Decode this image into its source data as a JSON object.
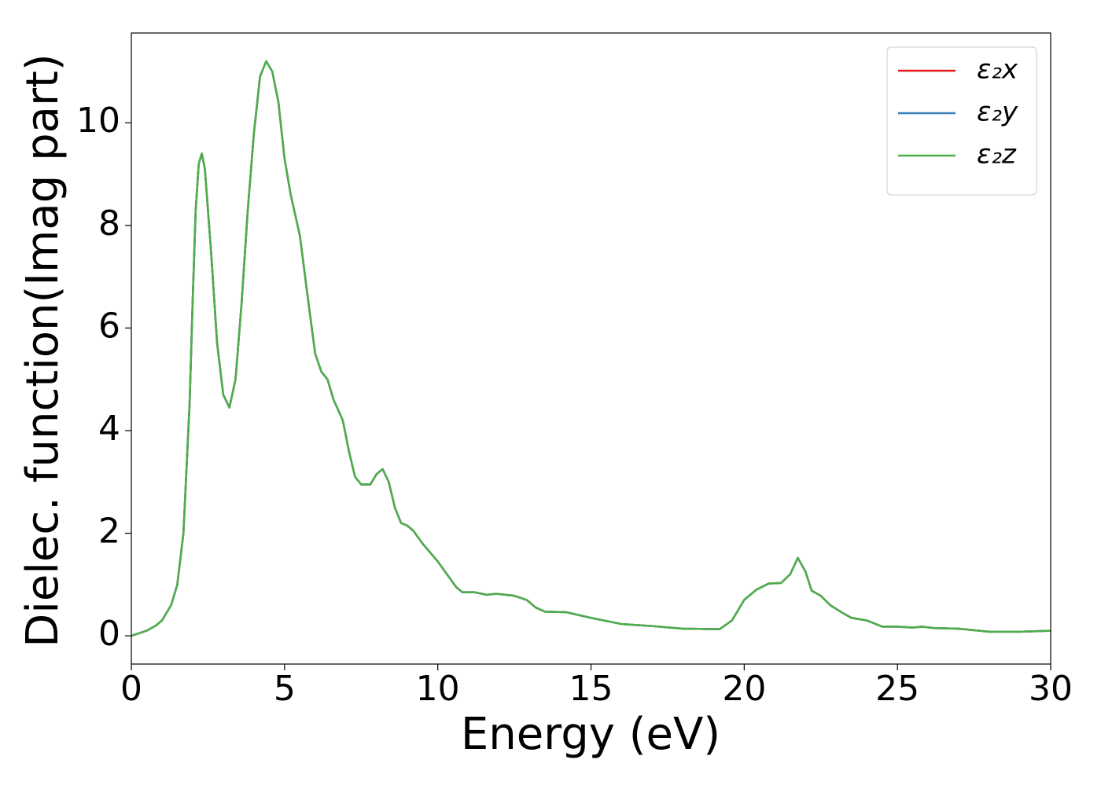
{
  "chart_data": {
    "type": "line",
    "x_label": "Energy (eV)",
    "y_label": "Dielec. function(Imag part)",
    "xlim": [
      0,
      30
    ],
    "ylim": [
      -0.55,
      11.75
    ],
    "xticks": [
      0,
      5,
      10,
      15,
      20,
      25,
      30
    ],
    "yticks": [
      0,
      2,
      4,
      6,
      8,
      10
    ],
    "legend": "upper right",
    "x": [
      0,
      0.5,
      0.8,
      1.0,
      1.3,
      1.5,
      1.7,
      1.9,
      2.0,
      2.1,
      2.2,
      2.3,
      2.4,
      2.6,
      2.8,
      3.0,
      3.2,
      3.4,
      3.6,
      3.8,
      4.0,
      4.2,
      4.4,
      4.6,
      4.8,
      5.0,
      5.2,
      5.5,
      5.8,
      6.0,
      6.2,
      6.4,
      6.6,
      6.9,
      7.1,
      7.3,
      7.5,
      7.8,
      8.0,
      8.2,
      8.4,
      8.6,
      8.8,
      9.0,
      9.2,
      9.5,
      10.0,
      10.3,
      10.6,
      10.8,
      11.2,
      11.6,
      11.9,
      12.5,
      12.9,
      13.2,
      13.5,
      14.2,
      15.0,
      16.0,
      17.0,
      18.0,
      19.2,
      19.6,
      20.0,
      20.4,
      20.8,
      21.2,
      21.5,
      21.75,
      22.0,
      22.2,
      22.5,
      22.8,
      23.2,
      23.5,
      24.0,
      24.5,
      25.0,
      25.5,
      25.8,
      26.2,
      27.0,
      28.0,
      29.0,
      30.0
    ],
    "series": [
      {
        "name": "ε₂x",
        "color": "#e41a1c",
        "values": [
          0,
          0.1,
          0.2,
          0.3,
          0.6,
          1.0,
          2.0,
          4.5,
          6.5,
          8.3,
          9.2,
          9.4,
          9.1,
          7.5,
          5.7,
          4.7,
          4.45,
          5.0,
          6.5,
          8.3,
          9.8,
          10.9,
          11.2,
          11.0,
          10.4,
          9.3,
          8.6,
          7.8,
          6.4,
          5.5,
          5.15,
          5.0,
          4.6,
          4.2,
          3.6,
          3.1,
          2.95,
          2.95,
          3.15,
          3.25,
          3.0,
          2.5,
          2.2,
          2.15,
          2.05,
          1.8,
          1.45,
          1.2,
          0.95,
          0.85,
          0.85,
          0.8,
          0.82,
          0.78,
          0.7,
          0.55,
          0.47,
          0.46,
          0.35,
          0.23,
          0.19,
          0.14,
          0.13,
          0.3,
          0.7,
          0.9,
          1.02,
          1.03,
          1.2,
          1.52,
          1.25,
          0.88,
          0.78,
          0.6,
          0.45,
          0.35,
          0.3,
          0.18,
          0.18,
          0.16,
          0.18,
          0.15,
          0.14,
          0.08,
          0.08,
          0.1
        ]
      },
      {
        "name": "ε₂y",
        "color": "#377eb8",
        "values": [
          0,
          0.1,
          0.2,
          0.3,
          0.6,
          1.0,
          2.0,
          4.5,
          6.5,
          8.3,
          9.2,
          9.4,
          9.1,
          7.5,
          5.7,
          4.7,
          4.45,
          5.0,
          6.5,
          8.3,
          9.8,
          10.9,
          11.2,
          11.0,
          10.4,
          9.3,
          8.6,
          7.8,
          6.4,
          5.5,
          5.15,
          5.0,
          4.6,
          4.2,
          3.6,
          3.1,
          2.95,
          2.95,
          3.15,
          3.25,
          3.0,
          2.5,
          2.2,
          2.15,
          2.05,
          1.8,
          1.45,
          1.2,
          0.95,
          0.85,
          0.85,
          0.8,
          0.82,
          0.78,
          0.7,
          0.55,
          0.47,
          0.46,
          0.35,
          0.23,
          0.19,
          0.14,
          0.13,
          0.3,
          0.7,
          0.9,
          1.02,
          1.03,
          1.2,
          1.52,
          1.25,
          0.88,
          0.78,
          0.6,
          0.45,
          0.35,
          0.3,
          0.18,
          0.18,
          0.16,
          0.18,
          0.15,
          0.14,
          0.08,
          0.08,
          0.1
        ]
      },
      {
        "name": "ε₂z",
        "color": "#4daf4a",
        "values": [
          0,
          0.1,
          0.2,
          0.3,
          0.6,
          1.0,
          2.0,
          4.5,
          6.5,
          8.3,
          9.2,
          9.4,
          9.1,
          7.5,
          5.7,
          4.7,
          4.45,
          5.0,
          6.5,
          8.3,
          9.8,
          10.9,
          11.2,
          11.0,
          10.4,
          9.3,
          8.6,
          7.8,
          6.4,
          5.5,
          5.15,
          5.0,
          4.6,
          4.2,
          3.6,
          3.1,
          2.95,
          2.95,
          3.15,
          3.25,
          3.0,
          2.5,
          2.2,
          2.15,
          2.05,
          1.8,
          1.45,
          1.2,
          0.95,
          0.85,
          0.85,
          0.8,
          0.82,
          0.78,
          0.7,
          0.55,
          0.47,
          0.46,
          0.35,
          0.23,
          0.19,
          0.14,
          0.13,
          0.3,
          0.7,
          0.9,
          1.02,
          1.03,
          1.2,
          1.52,
          1.25,
          0.88,
          0.78,
          0.6,
          0.45,
          0.35,
          0.3,
          0.18,
          0.18,
          0.16,
          0.18,
          0.15,
          0.14,
          0.08,
          0.08,
          0.1
        ]
      }
    ]
  }
}
